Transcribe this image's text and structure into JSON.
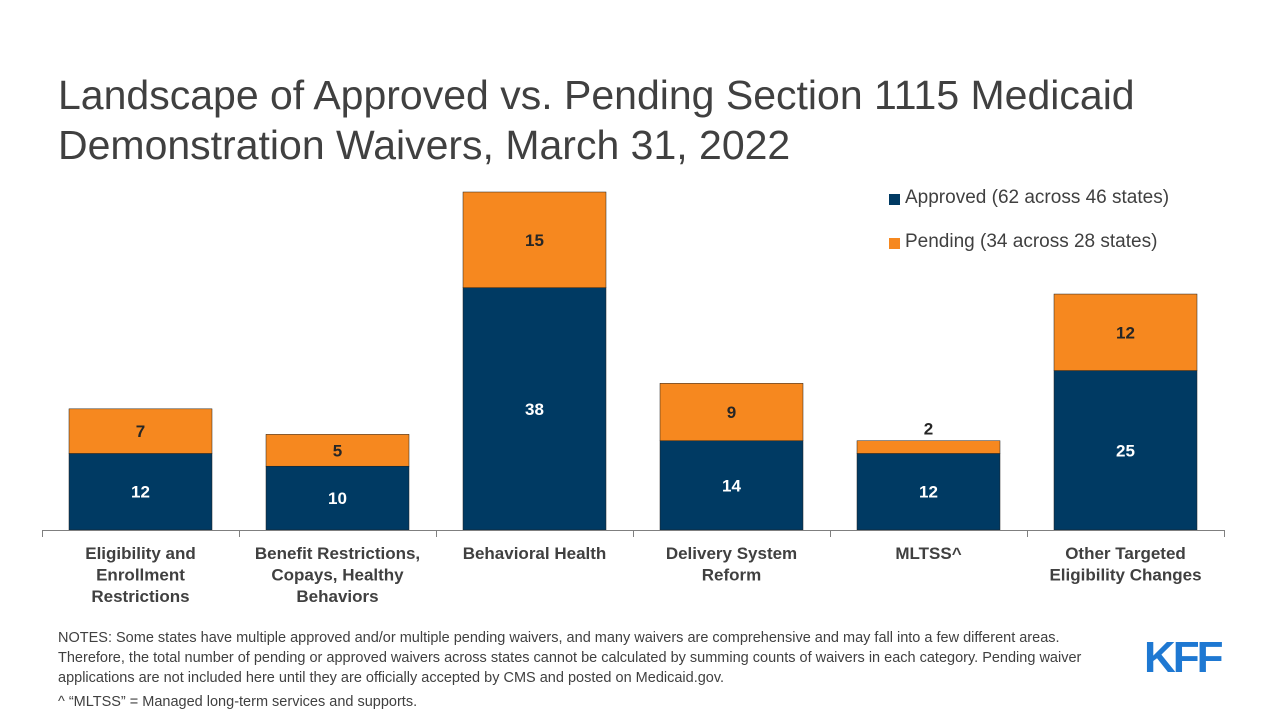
{
  "title_line1": "Landscape of Approved vs. Pending Section 1115 Medicaid",
  "title_line2": "Demonstration Waivers, March 31, 2022",
  "colors": {
    "approved": "#003a63",
    "pending": "#f6881f",
    "axis": "#7f7f7f",
    "text": "#404040",
    "logo": "#1e78d2"
  },
  "chart_data": {
    "type": "bar",
    "stacked": true,
    "categories": [
      [
        "Eligibility and",
        "Enrollment",
        "Restrictions"
      ],
      [
        "Benefit Restrictions,",
        "Copays, Healthy",
        "Behaviors"
      ],
      [
        "Behavioral Health"
      ],
      [
        "Delivery System",
        "Reform"
      ],
      [
        "MLTSS^"
      ],
      [
        "Other Targeted",
        "Eligibility Changes"
      ]
    ],
    "series": [
      {
        "name": "Approved (62 across 46 states)",
        "values": [
          12,
          10,
          38,
          14,
          12,
          25
        ]
      },
      {
        "name": "Pending (34 across 28 states)",
        "values": [
          7,
          5,
          15,
          9,
          2,
          12
        ]
      }
    ],
    "ylim": [
      0,
      53
    ],
    "legend_position": "top-right",
    "grid": false
  },
  "notes": "NOTES: Some states have multiple approved and/or multiple pending waivers, and many waivers are comprehensive and may fall into a few different areas. Therefore, the total number of pending or approved waivers across states cannot be calculated by summing counts of waivers in each category. Pending waiver applications are not included here until they are officially accepted by CMS and posted on Medicaid.gov.",
  "footnote": "^ “MLTSS” = Managed long-term services and supports.",
  "logo_text": "KFF"
}
